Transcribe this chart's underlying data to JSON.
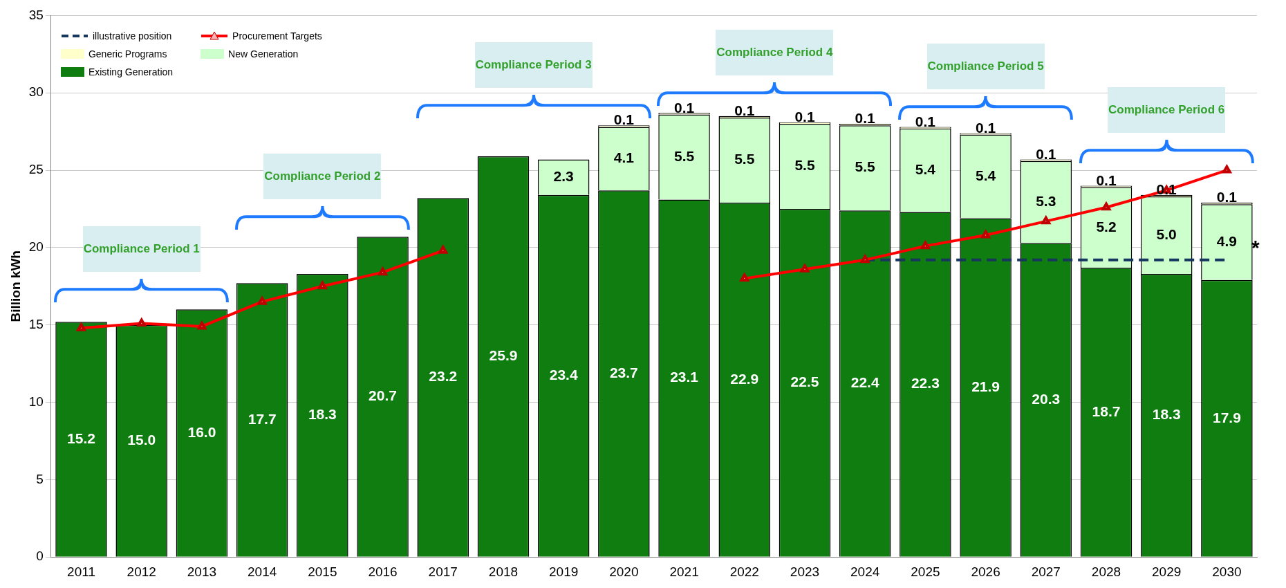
{
  "chart_data": {
    "type": "bar",
    "stacked": true,
    "ylabel": "Billion kWh",
    "categories": [
      "2011",
      "2012",
      "2013",
      "2014",
      "2015",
      "2016",
      "2017",
      "2018",
      "2019",
      "2020",
      "2021",
      "2022",
      "2023",
      "2024",
      "2025",
      "2026",
      "2027",
      "2028",
      "2029",
      "2030"
    ],
    "ylim": [
      0,
      35
    ],
    "yticks": [
      0,
      5,
      10,
      15,
      20,
      25,
      30,
      35
    ],
    "grid": "y",
    "legend": "top left",
    "series": [
      {
        "name": "Existing Generation",
        "color": "#0f7d0f",
        "values": [
          15.2,
          15.0,
          16.0,
          17.7,
          18.3,
          20.7,
          23.2,
          25.9,
          23.4,
          23.7,
          23.1,
          22.9,
          22.5,
          22.4,
          22.3,
          21.9,
          20.3,
          18.7,
          18.3,
          17.9
        ],
        "value_labels": [
          "15.2",
          "15.0",
          "16.0",
          "17.7",
          "18.3",
          "20.7",
          "23.2",
          "25.9",
          "23.4",
          "23.7",
          "23.1",
          "22.9",
          "22.5",
          "22.4",
          "22.3",
          "21.9",
          "20.3",
          "18.7",
          "18.3",
          "17.9"
        ]
      },
      {
        "name": "New Generation",
        "color": "#ccffcc",
        "values": [
          null,
          null,
          null,
          null,
          null,
          null,
          null,
          null,
          2.3,
          4.1,
          5.5,
          5.5,
          5.5,
          5.5,
          5.4,
          5.4,
          5.3,
          5.2,
          5.0,
          4.9
        ],
        "value_labels": [
          null,
          null,
          null,
          null,
          null,
          null,
          null,
          null,
          "2.3",
          "4.1",
          "5.5",
          "5.5",
          "5.5",
          "5.5",
          "5.4",
          "5.4",
          "5.3",
          "5.2",
          "5.0",
          "4.9"
        ]
      },
      {
        "name": "Generic Programs",
        "color": "#ffffcc",
        "values": [
          null,
          null,
          null,
          null,
          null,
          null,
          null,
          null,
          null,
          0.1,
          0.1,
          0.1,
          0.1,
          0.1,
          0.1,
          0.1,
          0.1,
          0.1,
          0.1,
          0.1
        ],
        "value_labels": [
          null,
          null,
          null,
          null,
          null,
          null,
          null,
          null,
          null,
          "0.1",
          "0.1",
          "0.1",
          "0.1",
          "0.1",
          "0.1",
          "0.1",
          "0.1",
          "0.1",
          "0.1",
          "0.1"
        ]
      },
      {
        "name": "Procurement Targets",
        "type": "line",
        "color": "#ff0000",
        "marker": "triangle",
        "values": [
          14.8,
          15.1,
          14.9,
          16.5,
          17.5,
          18.4,
          19.8,
          null,
          null,
          null,
          null,
          18.0,
          18.6,
          19.2,
          20.1,
          20.8,
          21.7,
          22.6,
          23.7,
          25.0
        ]
      },
      {
        "name": "illustrative position",
        "type": "line",
        "color": "#17375e",
        "marker": "none",
        "line_style": "dashed",
        "values": [
          null,
          null,
          null,
          null,
          null,
          null,
          null,
          null,
          null,
          null,
          null,
          null,
          null,
          19.2,
          19.2,
          19.2,
          19.2,
          19.2,
          19.2,
          19.2
        ]
      }
    ],
    "bands": [
      {
        "axis": "x",
        "from": "2011",
        "to": "2013",
        "label": "Compliance Period 1",
        "color": "#d9eef0"
      },
      {
        "axis": "x",
        "from": "2014",
        "to": "2016",
        "label": "Compliance Period 2",
        "color": "#d9eef0"
      },
      {
        "axis": "x",
        "from": "2017",
        "to": "2020",
        "label": "Compliance Period 3",
        "color": "#d9eef0"
      },
      {
        "axis": "x",
        "from": "2021",
        "to": "2024",
        "label": "Compliance Period 4",
        "color": "#d9eef0"
      },
      {
        "axis": "x",
        "from": "2025",
        "to": "2027",
        "label": "Compliance Period 5",
        "color": "#d9eef0"
      },
      {
        "axis": "x",
        "from": "2028",
        "to": "2030",
        "label": "Compliance Period 6",
        "color": "#d9eef0"
      }
    ],
    "annotations": [
      {
        "text": "*",
        "x": "2030",
        "y": 19.2
      }
    ]
  }
}
